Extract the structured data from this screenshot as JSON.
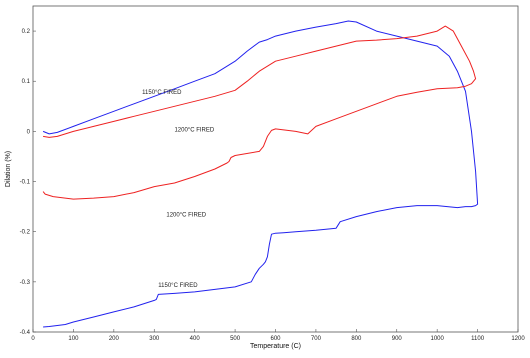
{
  "chart_data": {
    "type": "line",
    "title": "",
    "xlabel": "Temperature (C)",
    "ylabel": "Dilation (%)",
    "xlim": [
      0,
      1200
    ],
    "ylim": [
      -0.4,
      0.25
    ],
    "xticks": [
      0,
      100,
      200,
      300,
      400,
      500,
      600,
      700,
      800,
      900,
      1000,
      1100,
      1200
    ],
    "yticks": [
      -0.4,
      -0.3,
      -0.2,
      -0.1,
      0,
      0.1,
      0.2
    ],
    "ytick_labels": [
      "-0.4",
      "-0.3",
      "-0.2",
      "-0.1",
      "0",
      "0.1",
      "0.2"
    ],
    "grid": false,
    "legend": "none",
    "series": [
      {
        "color": "#2222ee",
        "x": [
          25,
          40,
          60,
          100,
          150,
          200,
          250,
          300,
          350,
          400,
          450,
          500,
          530,
          560,
          580,
          600,
          650,
          700,
          750,
          780,
          800,
          850,
          900,
          950,
          1000,
          1030,
          1050,
          1070,
          1085,
          1095,
          1100,
          1095,
          1085,
          1070,
          1050,
          1000,
          950,
          900,
          850,
          800,
          760,
          750,
          700,
          650,
          620,
          600,
          590,
          585,
          580,
          575,
          570,
          560,
          550,
          540,
          500,
          450,
          400,
          350,
          310,
          305,
          300,
          250,
          200,
          150,
          100,
          80,
          60,
          40,
          25
        ],
        "y": [
          0.0,
          -0.005,
          -0.002,
          0.01,
          0.025,
          0.04,
          0.055,
          0.07,
          0.085,
          0.1,
          0.115,
          0.14,
          0.16,
          0.178,
          0.183,
          0.19,
          0.2,
          0.208,
          0.215,
          0.22,
          0.218,
          0.2,
          0.19,
          0.18,
          0.17,
          0.15,
          0.12,
          0.08,
          0.0,
          -0.08,
          -0.145,
          -0.148,
          -0.15,
          -0.15,
          -0.152,
          -0.148,
          -0.148,
          -0.152,
          -0.16,
          -0.17,
          -0.18,
          -0.193,
          -0.197,
          -0.2,
          -0.202,
          -0.203,
          -0.205,
          -0.225,
          -0.25,
          -0.26,
          -0.265,
          -0.273,
          -0.285,
          -0.3,
          -0.31,
          -0.315,
          -0.32,
          -0.323,
          -0.325,
          -0.335,
          -0.337,
          -0.35,
          -0.36,
          -0.37,
          -0.38,
          -0.385,
          -0.387,
          -0.389,
          -0.39
        ]
      },
      {
        "color": "#ee2222",
        "x": [
          25,
          40,
          60,
          100,
          150,
          200,
          250,
          300,
          350,
          400,
          450,
          500,
          530,
          560,
          580,
          600,
          650,
          700,
          750,
          800,
          850,
          900,
          950,
          1000,
          1020,
          1040,
          1060,
          1080,
          1090,
          1095,
          1085,
          1070,
          1050,
          1000,
          950,
          900,
          850,
          800,
          750,
          700,
          680,
          650,
          620,
          600,
          590,
          580,
          570,
          560,
          500,
          490,
          485,
          480,
          450,
          400,
          350,
          300,
          250,
          200,
          150,
          100,
          80,
          50,
          30,
          25
        ],
        "y": [
          -0.01,
          -0.012,
          -0.01,
          0.0,
          0.01,
          0.02,
          0.03,
          0.04,
          0.05,
          0.06,
          0.07,
          0.082,
          0.1,
          0.12,
          0.13,
          0.14,
          0.15,
          0.16,
          0.17,
          0.18,
          0.182,
          0.185,
          0.19,
          0.2,
          0.21,
          0.2,
          0.17,
          0.14,
          0.12,
          0.105,
          0.095,
          0.09,
          0.087,
          0.085,
          0.078,
          0.07,
          0.055,
          0.04,
          0.025,
          0.01,
          -0.005,
          0.0,
          0.003,
          0.005,
          0.002,
          -0.01,
          -0.03,
          -0.04,
          -0.048,
          -0.052,
          -0.06,
          -0.063,
          -0.075,
          -0.09,
          -0.103,
          -0.11,
          -0.122,
          -0.13,
          -0.133,
          -0.135,
          -0.133,
          -0.13,
          -0.125,
          -0.12
        ]
      }
    ],
    "annotations": [
      {
        "text": "1150°C FIRED",
        "x": 270,
        "y": 0.075
      },
      {
        "text": "1200°C FIRED",
        "x": 350,
        "y": 0.0
      },
      {
        "text": "1200°C FIRED",
        "x": 330,
        "y": -0.17
      },
      {
        "text": "1150°C FIRED",
        "x": 310,
        "y": -0.31
      }
    ]
  }
}
